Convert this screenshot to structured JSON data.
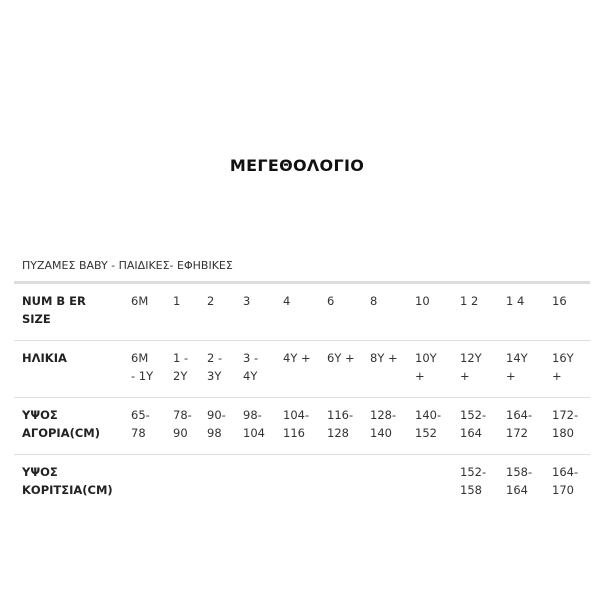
{
  "title": "ΜΕΓΕΘΟΛΟΓΙΟ",
  "subtitle": "ΠΥΖΑΜΕΣ BABY - ΠΑΙΔΙΚΕΣ- ΕΦΗΒΙΚΕΣ",
  "rows": [
    {
      "label": "NUM B ER\nSIZE",
      "cells": [
        "6M",
        "1",
        "2",
        "3",
        "4",
        "6",
        "8",
        "10",
        "1 2",
        "1 4",
        "16"
      ]
    },
    {
      "label": "ΗΛΙΚΙΑ",
      "cells": [
        "6M\n- 1Y",
        "1 -\n2Y",
        "2 -\n3Y",
        "3 -\n4Y",
        "4Y +",
        "6Y +",
        "8Y +",
        "10Y\n+",
        "12Y\n+",
        "14Y\n+",
        "16Y\n+"
      ]
    },
    {
      "label": "ΥΨΟΣ\nΑΓΟΡΙΑ(CM)",
      "cells": [
        "65-\n78",
        "78-\n90",
        "90-\n98",
        "98-\n104",
        "104-\n116",
        "116-\n128",
        "128-\n140",
        "140-\n152",
        "152-\n164",
        "164-\n172",
        "172-\n180"
      ]
    },
    {
      "label": "ΥΨΟΣ\nΚΟΡΙΤΣΙΑ(CM)",
      "cells": [
        "",
        "",
        "",
        "",
        "",
        "",
        "",
        "",
        "152-\n158",
        "158-\n164",
        "164-\n170"
      ]
    }
  ]
}
